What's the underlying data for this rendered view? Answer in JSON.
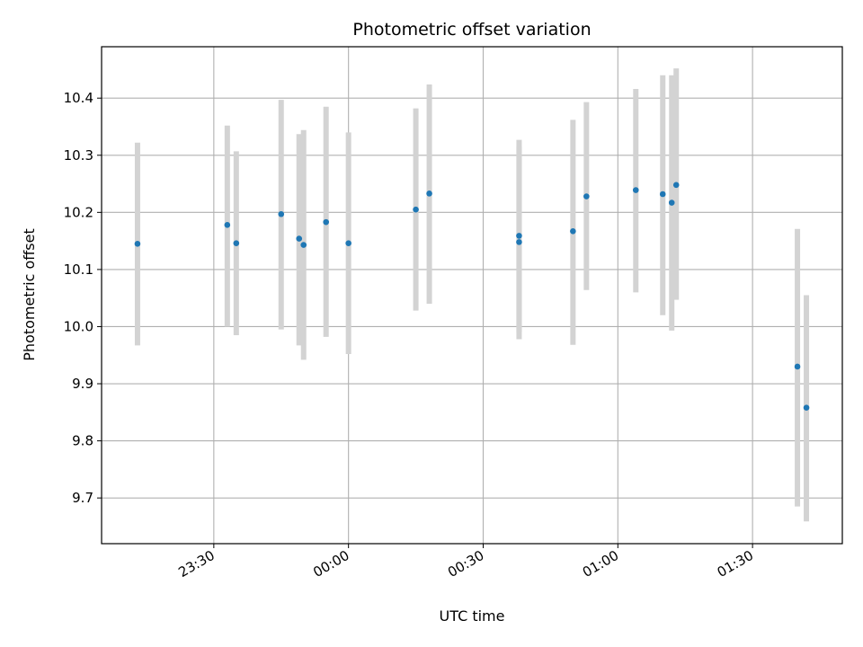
{
  "chart_data": {
    "type": "scatter",
    "title": "Photometric offset variation",
    "xlabel": "UTC time",
    "ylabel": "Photometric offset",
    "x_axis_kind": "time",
    "x_range": [
      "23:05",
      "01:50"
    ],
    "xticks": [
      "23:30",
      "00:00",
      "00:30",
      "01:00",
      "01:30"
    ],
    "ylim": [
      9.62,
      10.49
    ],
    "yticks": [
      "9.7",
      "9.8",
      "9.9",
      "10.0",
      "10.1",
      "10.2",
      "10.3",
      "10.4"
    ],
    "grid": true,
    "colors": {
      "point": "#1f77b4",
      "errorbar": "#d3d3d3",
      "grid": "#b0b0b0"
    },
    "series": [
      {
        "points": [
          {
            "x": "23:13",
            "y": 10.145,
            "ylow": 9.967,
            "yhigh": 10.322
          },
          {
            "x": "23:33",
            "y": 10.178,
            "ylow": 10.0,
            "yhigh": 10.352
          },
          {
            "x": "23:35",
            "y": 10.146,
            "ylow": 9.985,
            "yhigh": 10.307
          },
          {
            "x": "23:45",
            "y": 10.197,
            "ylow": 9.995,
            "yhigh": 10.397
          },
          {
            "x": "23:49",
            "y": 10.154,
            "ylow": 9.967,
            "yhigh": 10.337
          },
          {
            "x": "23:50",
            "y": 10.143,
            "ylow": 9.942,
            "yhigh": 10.344
          },
          {
            "x": "23:55",
            "y": 10.183,
            "ylow": 9.982,
            "yhigh": 10.385
          },
          {
            "x": "00:00",
            "y": 10.146,
            "ylow": 9.952,
            "yhigh": 10.34
          },
          {
            "x": "00:15",
            "y": 10.205,
            "ylow": 10.028,
            "yhigh": 10.382
          },
          {
            "x": "00:18",
            "y": 10.233,
            "ylow": 10.04,
            "yhigh": 10.424
          },
          {
            "x": "00:38",
            "y": 10.159,
            "ylow": 9.99,
            "yhigh": 10.327
          },
          {
            "x": "00:38",
            "y": 10.148,
            "ylow": 9.978,
            "yhigh": 10.316
          },
          {
            "x": "00:50",
            "y": 10.167,
            "ylow": 9.968,
            "yhigh": 10.362
          },
          {
            "x": "00:53",
            "y": 10.228,
            "ylow": 10.064,
            "yhigh": 10.393
          },
          {
            "x": "01:04",
            "y": 10.239,
            "ylow": 10.06,
            "yhigh": 10.416
          },
          {
            "x": "01:10",
            "y": 10.232,
            "ylow": 10.02,
            "yhigh": 10.44
          },
          {
            "x": "01:12",
            "y": 10.217,
            "ylow": 9.993,
            "yhigh": 10.44
          },
          {
            "x": "01:13",
            "y": 10.248,
            "ylow": 10.047,
            "yhigh": 10.452
          },
          {
            "x": "01:40",
            "y": 9.93,
            "ylow": 9.685,
            "yhigh": 10.171
          },
          {
            "x": "01:42",
            "y": 9.858,
            "ylow": 9.659,
            "yhigh": 10.055
          }
        ]
      }
    ]
  }
}
